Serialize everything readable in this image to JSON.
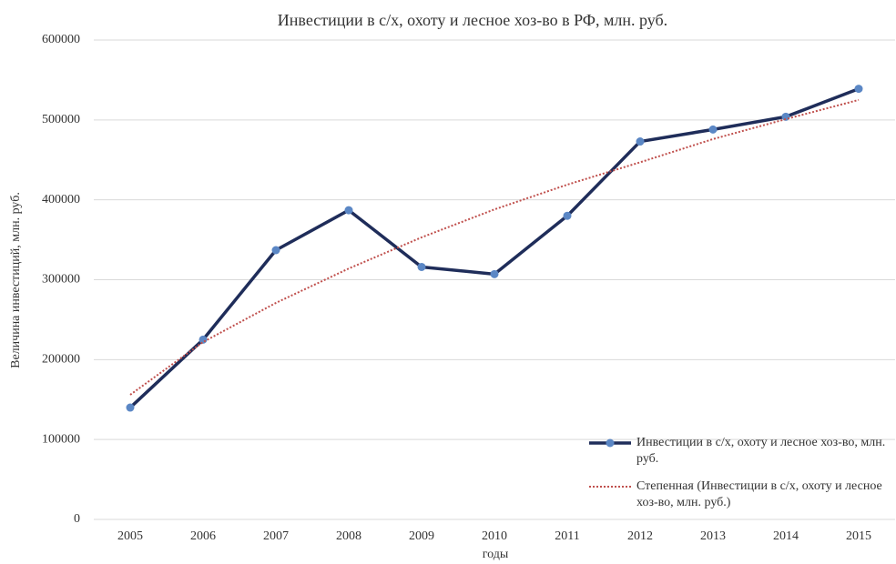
{
  "chart_data": {
    "type": "line",
    "title": "Инвестиции в с/х, охоту и лесное хоз-во в РФ, млн. руб.",
    "x_label": "годы",
    "y_label": "Величина инвестиций, млн. руб.",
    "categories": [
      "2005",
      "2006",
      "2007",
      "2008",
      "2009",
      "2010",
      "2011",
      "2012",
      "2013",
      "2014",
      "2015"
    ],
    "series": [
      {
        "name": "Инвестиции в с/х, охоту и лесное хоз-во, млн. руб.",
        "color": "#1f2d5a",
        "marker_color": "#5b87c5",
        "style": "solid",
        "values": [
          140000,
          225000,
          337000,
          387000,
          316000,
          307000,
          380000,
          473000,
          488000,
          504000,
          539000
        ]
      },
      {
        "name": "Степенная (Инвестиции в с/х, охоту и лесное хоз-во, млн. руб.)",
        "color": "#c0504d",
        "style": "dotted",
        "values": [
          156000,
          222000,
          271000,
          314000,
          353000,
          388000,
          419000,
          447000,
          476000,
          501000,
          525000
        ]
      }
    ],
    "ylim": [
      0,
      600000
    ],
    "yticks": [
      0,
      100000,
      200000,
      300000,
      400000,
      500000,
      600000
    ],
    "grid": true,
    "legend": "lower right"
  }
}
